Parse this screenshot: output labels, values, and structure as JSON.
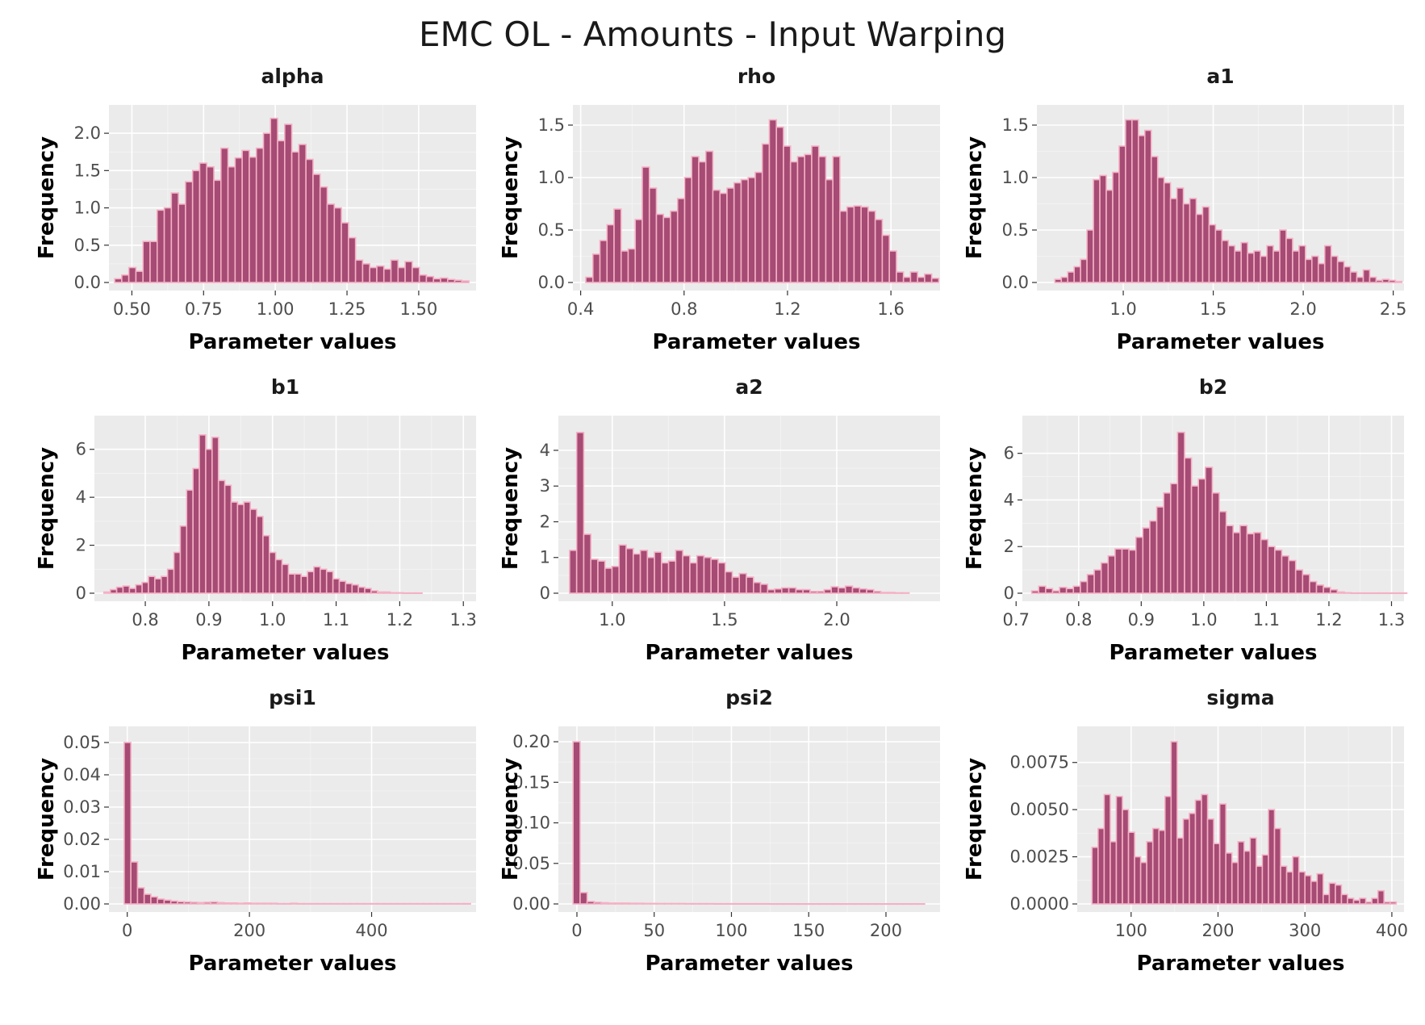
{
  "figure": {
    "title": "EMC OL - Amounts - Input Warping"
  },
  "colors": {
    "panel_bg": "#ebebeb",
    "grid": "#ffffff",
    "bar_fill": "#a54b74",
    "bar_outline": "#f5b0c4"
  },
  "chart_data": [
    {
      "type": "bar",
      "title": "alpha",
      "xlabel": "Parameter values",
      "ylabel": "Frequency",
      "xlim": [
        0.42,
        1.7
      ],
      "ylim": [
        0,
        2.25
      ],
      "xticks": [
        0.5,
        0.75,
        1.0,
        1.25,
        1.5
      ],
      "xtick_labels": [
        "0.50",
        "0.75",
        "1.00",
        "1.25",
        "1.50"
      ],
      "yticks": [
        0,
        0.5,
        1.0,
        1.5,
        2.0
      ],
      "ytick_labels": [
        "0.0",
        "0.5",
        "1.0",
        "1.5",
        "2.0"
      ],
      "bin_start": 0.44,
      "bin_width": 0.0247,
      "values": [
        0.05,
        0.1,
        0.2,
        0.15,
        0.55,
        0.55,
        0.97,
        1.0,
        1.2,
        1.05,
        1.35,
        1.5,
        1.6,
        1.55,
        1.37,
        1.8,
        1.55,
        1.67,
        1.77,
        1.68,
        1.8,
        2.0,
        2.2,
        1.9,
        2.12,
        1.75,
        1.85,
        1.65,
        1.45,
        1.28,
        1.05,
        1.0,
        0.8,
        0.6,
        0.3,
        0.25,
        0.2,
        0.22,
        0.18,
        0.3,
        0.2,
        0.28,
        0.2,
        0.1,
        0.08,
        0.05,
        0.06,
        0.04,
        0.03,
        0.02
      ]
    },
    {
      "type": "bar",
      "title": "rho",
      "xlabel": "Parameter values",
      "ylabel": "Frequency",
      "xlim": [
        0.37,
        1.79
      ],
      "ylim": [
        0,
        1.6
      ],
      "xticks": [
        0.4,
        0.8,
        1.2,
        1.6
      ],
      "xtick_labels": [
        "0.4",
        "0.8",
        "1.2",
        "1.6"
      ],
      "yticks": [
        0,
        0.5,
        1.0,
        1.5
      ],
      "ytick_labels": [
        "0.0",
        "0.5",
        "1.0",
        "1.5"
      ],
      "bin_start": 0.42,
      "bin_width": 0.0273,
      "values": [
        0.05,
        0.27,
        0.4,
        0.55,
        0.7,
        0.3,
        0.32,
        0.6,
        1.1,
        0.9,
        0.65,
        0.62,
        0.68,
        0.8,
        1.0,
        1.2,
        1.15,
        1.25,
        0.88,
        0.85,
        0.9,
        0.95,
        0.98,
        1.0,
        1.05,
        1.32,
        1.55,
        1.48,
        1.3,
        1.15,
        1.2,
        1.22,
        1.3,
        1.2,
        0.98,
        1.2,
        0.68,
        0.72,
        0.73,
        0.72,
        0.68,
        0.6,
        0.45,
        0.3,
        0.1,
        0.05,
        0.1,
        0.05,
        0.08,
        0.04
      ]
    },
    {
      "type": "bar",
      "title": "a1",
      "xlabel": "Parameter values",
      "ylabel": "Frequency",
      "xlim": [
        0.52,
        2.56
      ],
      "ylim": [
        0,
        1.6
      ],
      "xticks": [
        1.0,
        1.5,
        2.0,
        2.5
      ],
      "xtick_labels": [
        "1.0",
        "1.5",
        "2.0",
        "2.5"
      ],
      "yticks": [
        0,
        0.5,
        1.0,
        1.5
      ],
      "ytick_labels": [
        "0.0",
        "0.5",
        "1.0",
        "1.5"
      ],
      "bin_start": 0.62,
      "bin_width": 0.0357,
      "values": [
        0.03,
        0.05,
        0.1,
        0.15,
        0.22,
        0.5,
        0.98,
        1.02,
        0.88,
        1.05,
        1.3,
        1.55,
        1.55,
        1.4,
        1.45,
        1.2,
        1.0,
        0.95,
        0.8,
        0.9,
        0.75,
        0.8,
        0.65,
        0.72,
        0.55,
        0.5,
        0.4,
        0.35,
        0.3,
        0.38,
        0.28,
        0.3,
        0.25,
        0.35,
        0.3,
        0.5,
        0.42,
        0.3,
        0.35,
        0.22,
        0.25,
        0.18,
        0.35,
        0.25,
        0.2,
        0.15,
        0.1,
        0.05,
        0.12,
        0.05,
        0.02,
        0.03,
        0.02,
        0.01
      ]
    },
    {
      "type": "bar",
      "title": "b1",
      "xlabel": "Parameter values",
      "ylabel": "Frequency",
      "xlim": [
        0.72,
        1.32
      ],
      "ylim": [
        0,
        7.0
      ],
      "xticks": [
        0.8,
        0.9,
        1.0,
        1.1,
        1.2,
        1.3
      ],
      "xtick_labels": [
        "0.8",
        "0.9",
        "1.0",
        "1.1",
        "1.2",
        "1.3"
      ],
      "yticks": [
        0,
        2,
        4,
        6
      ],
      "ytick_labels": [
        "0",
        "2",
        "4",
        "6"
      ],
      "bin_start": 0.735,
      "bin_width": 0.01,
      "values": [
        0.05,
        0.15,
        0.25,
        0.3,
        0.2,
        0.35,
        0.45,
        0.7,
        0.6,
        0.7,
        1.0,
        1.7,
        2.8,
        4.3,
        5.2,
        6.6,
        6.0,
        6.5,
        4.7,
        4.5,
        3.8,
        3.7,
        3.8,
        3.5,
        3.2,
        2.4,
        1.7,
        1.4,
        1.2,
        0.8,
        0.8,
        0.7,
        0.9,
        1.1,
        1.0,
        0.9,
        0.6,
        0.5,
        0.4,
        0.35,
        0.25,
        0.2,
        0.1,
        0.05,
        0.05,
        0.02,
        0.02,
        0.01,
        0.01,
        0.01
      ]
    },
    {
      "type": "bar",
      "title": "a2",
      "xlabel": "Parameter values",
      "ylabel": "Frequency",
      "xlim": [
        0.76,
        2.46
      ],
      "ylim": [
        0,
        4.7
      ],
      "xticks": [
        1.0,
        1.5,
        2.0
      ],
      "xtick_labels": [
        "1.0",
        "1.5",
        "2.0"
      ],
      "yticks": [
        0,
        1,
        2,
        3,
        4
      ],
      "ytick_labels": [
        "0",
        "1",
        "2",
        "3",
        "4"
      ],
      "bin_start": 0.81,
      "bin_width": 0.0315,
      "values": [
        1.2,
        4.5,
        1.65,
        0.95,
        0.9,
        0.7,
        0.75,
        1.35,
        1.25,
        1.1,
        1.2,
        1.0,
        1.15,
        0.85,
        0.9,
        1.2,
        1.05,
        0.85,
        1.05,
        1.0,
        0.95,
        0.85,
        0.6,
        0.45,
        0.55,
        0.45,
        0.3,
        0.25,
        0.1,
        0.12,
        0.15,
        0.15,
        0.1,
        0.1,
        0.05,
        0.05,
        0.1,
        0.18,
        0.15,
        0.2,
        0.15,
        0.12,
        0.1,
        0.05,
        0.02,
        0.02,
        0.01,
        0.01
      ]
    },
    {
      "type": "bar",
      "title": "b2",
      "xlabel": "Parameter values",
      "ylabel": "Frequency",
      "xlim": [
        0.71,
        1.32
      ],
      "ylim": [
        0,
        7.2
      ],
      "xticks": [
        0.7,
        0.8,
        0.9,
        1.0,
        1.1,
        1.2,
        1.3
      ],
      "xtick_labels": [
        "0.7",
        "0.8",
        "0.9",
        "1.0",
        "1.1",
        "1.2",
        "1.3"
      ],
      "yticks": [
        0,
        2,
        4,
        6
      ],
      "ytick_labels": [
        "0",
        "2",
        "4",
        "6"
      ],
      "bin_start": 0.725,
      "bin_width": 0.0111,
      "values": [
        0.1,
        0.3,
        0.2,
        0.1,
        0.25,
        0.2,
        0.3,
        0.5,
        0.8,
        1.0,
        1.3,
        1.6,
        1.9,
        1.9,
        1.85,
        2.4,
        2.8,
        3.1,
        3.7,
        4.3,
        4.7,
        6.9,
        5.8,
        4.6,
        4.9,
        5.4,
        4.3,
        3.5,
        2.9,
        2.6,
        2.9,
        2.55,
        2.6,
        2.3,
        2.0,
        1.85,
        1.6,
        1.4,
        1.0,
        0.8,
        0.5,
        0.35,
        0.25,
        0.15,
        0.05,
        0.02,
        0.01,
        0.01,
        0.01,
        0.01,
        0.01,
        0.01,
        0.01,
        0.01
      ]
    },
    {
      "type": "bar",
      "title": "psi1",
      "xlabel": "Parameter values",
      "ylabel": "Frequency",
      "xlim": [
        -30,
        571
      ],
      "ylim": [
        0,
        0.052
      ],
      "xticks": [
        0,
        200,
        400
      ],
      "xtick_labels": [
        "0",
        "200",
        "400"
      ],
      "yticks": [
        0,
        0.01,
        0.02,
        0.03,
        0.04,
        0.05
      ],
      "ytick_labels": [
        "0.00",
        "0.01",
        "0.02",
        "0.03",
        "0.04",
        "0.05"
      ],
      "bin_start": -5,
      "bin_width": 10.9,
      "values": [
        0.05,
        0.013,
        0.005,
        0.003,
        0.0022,
        0.0015,
        0.0012,
        0.0009,
        0.0007,
        0.0006,
        0.0005,
        0.0004,
        0.0005,
        0.0006,
        0.0004,
        0.0003,
        0.0003,
        0.0002,
        0.0003,
        0.0002,
        0.0002,
        0.0002,
        0.0002,
        0.0001,
        0.0001,
        0.0002,
        0.0001,
        0.0001,
        0.0001,
        0.0001,
        0.0001,
        0.0001,
        0.0001,
        0.0001,
        0.0001,
        0.0001,
        0.0001,
        0.0001,
        0.0001,
        0.0001,
        0.0001,
        0.0001,
        0.0001,
        0.0001,
        0.0001,
        0.0001,
        0.0001,
        0.0001,
        0.0001,
        0.0001,
        0.0001,
        0.0001
      ]
    },
    {
      "type": "bar",
      "title": "psi2",
      "xlabel": "Parameter values",
      "ylabel": "Frequency",
      "xlim": [
        -12,
        235
      ],
      "ylim": [
        0,
        0.207
      ],
      "xticks": [
        0,
        50,
        100,
        150,
        200
      ],
      "xtick_labels": [
        "0",
        "50",
        "100",
        "150",
        "200"
      ],
      "yticks": [
        0,
        0.05,
        0.1,
        0.15,
        0.2
      ],
      "ytick_labels": [
        "0.00",
        "0.05",
        "0.10",
        "0.15",
        "0.20"
      ],
      "bin_start": -2.5,
      "bin_width": 4.55,
      "values": [
        0.2,
        0.014,
        0.003,
        0.002,
        0.0015,
        0.001,
        0.001,
        0.001,
        0.0008,
        0.0008,
        0.0006,
        0.0006,
        0.0005,
        0.0005,
        0.0005,
        0.0005,
        0.0004,
        0.0004,
        0.0004,
        0.0004,
        0.0003,
        0.0003,
        0.0003,
        0.0003,
        0.0003,
        0.0003,
        0.0003,
        0.0003,
        0.0002,
        0.0002,
        0.0002,
        0.0002,
        0.0002,
        0.0002,
        0.0002,
        0.0002,
        0.0002,
        0.0002,
        0.0002,
        0.0002,
        0.0002,
        0.0002,
        0.0002,
        0.0002,
        0.0002,
        0.0002,
        0.0002,
        0.0002,
        0.0002,
        0.0002
      ]
    },
    {
      "type": "bar",
      "title": "sigma",
      "xlabel": "Parameter values",
      "ylabel": "Frequency",
      "xlim": [
        38,
        414
      ],
      "ylim": [
        0,
        0.0089
      ],
      "xticks": [
        100,
        200,
        300,
        400
      ],
      "xtick_labels": [
        "100",
        "200",
        "300",
        "400"
      ],
      "yticks": [
        0,
        0.0025,
        0.005,
        0.0075
      ],
      "ytick_labels": [
        "0.0000",
        "0.0025",
        "0.0050",
        "0.0075"
      ],
      "bin_start": 55,
      "bin_width": 7.0,
      "values": [
        0.003,
        0.004,
        0.0058,
        0.0033,
        0.0057,
        0.005,
        0.0038,
        0.0025,
        0.0022,
        0.0033,
        0.004,
        0.0039,
        0.0057,
        0.0086,
        0.0035,
        0.0045,
        0.0048,
        0.0055,
        0.0058,
        0.0045,
        0.0032,
        0.0053,
        0.0027,
        0.0022,
        0.0033,
        0.0028,
        0.0035,
        0.002,
        0.0026,
        0.005,
        0.004,
        0.002,
        0.0017,
        0.0025,
        0.0017,
        0.0015,
        0.0012,
        0.0016,
        0.0005,
        0.0011,
        0.001,
        0.0005,
        0.0003,
        0.0002,
        0.0003,
        0.0001,
        0.0003,
        0.0007,
        0.0001,
        0.0001
      ]
    }
  ]
}
